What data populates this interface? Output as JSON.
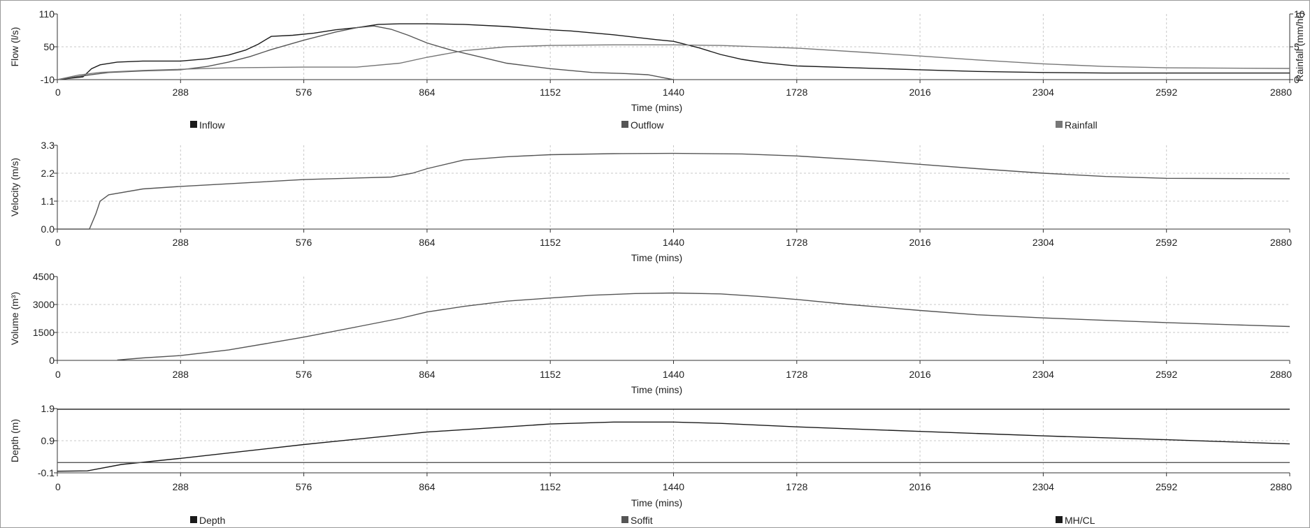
{
  "colors": {
    "series_dark": "#1a1a1a",
    "series_mid": "#555555",
    "series_light": "#777777",
    "grid": "#c8c8c8",
    "axis": "#333333"
  },
  "chart_data": [
    {
      "type": "line",
      "id": "flow",
      "xlabel": "Time (mins)",
      "ylabel": "Flow (l/s)",
      "y2label": "Rainfall (mm/hr)",
      "xlim": [
        0,
        2880
      ],
      "xticks": [
        0,
        288,
        576,
        864,
        1152,
        1440,
        1728,
        2016,
        2304,
        2592,
        2880
      ],
      "ylim": [
        -10,
        110
      ],
      "yticks": [
        -10,
        50,
        110
      ],
      "y2lim": [
        0,
        10
      ],
      "y2ticks": [
        0,
        5,
        10
      ],
      "grid": true,
      "legend": [
        "Inflow",
        "Outflow",
        "Rainfall"
      ],
      "series": [
        {
          "name": "Inflow",
          "axis": "left",
          "x": [
            0,
            60,
            80,
            100,
            140,
            200,
            288,
            350,
            400,
            440,
            470,
            500,
            550,
            600,
            650,
            700,
            750,
            800,
            864,
            950,
            1050,
            1152,
            1200,
            1300,
            1400,
            1440,
            1500,
            1550,
            1600,
            1650,
            1700,
            1728,
            1850,
            2016,
            2150,
            2304,
            2450,
            2592,
            2880
          ],
          "y": [
            -10,
            -5,
            10,
            17,
            22,
            24,
            24,
            28,
            35,
            44,
            55,
            69,
            71,
            75,
            81,
            85,
            91,
            92,
            92,
            91,
            87,
            81,
            79,
            72,
            63,
            60,
            48,
            36,
            27,
            21,
            17,
            15,
            12,
            8,
            5,
            3,
            2,
            2,
            2
          ]
        },
        {
          "name": "Outflow",
          "axis": "left",
          "x": [
            0,
            60,
            120,
            200,
            288,
            350,
            400,
            450,
            500,
            576,
            650,
            700,
            740,
            780,
            820,
            864,
            920,
            980,
            1050,
            1152,
            1250,
            1330,
            1380,
            1420,
            1440
          ],
          "y": [
            -10,
            -3,
            3,
            6,
            8,
            14,
            22,
            32,
            45,
            62,
            77,
            85,
            88,
            82,
            71,
            57,
            44,
            33,
            20,
            10,
            3,
            1,
            -1,
            -7,
            -10
          ]
        },
        {
          "name": "Rainfall",
          "axis": "right",
          "x": [
            0,
            50,
            100,
            200,
            400,
            576,
            700,
            800,
            864,
            950,
            1050,
            1152,
            1300,
            1440,
            1550,
            1728,
            1900,
            2016,
            2150,
            2304,
            2450,
            2592,
            2880
          ],
          "y": [
            0,
            0.7,
            1.1,
            1.4,
            1.8,
            1.9,
            1.9,
            2.5,
            3.4,
            4.4,
            5.0,
            5.2,
            5.3,
            5.3,
            5.2,
            4.8,
            4.1,
            3.6,
            3.0,
            2.4,
            2.0,
            1.8,
            1.7
          ]
        }
      ]
    },
    {
      "type": "line",
      "id": "velocity",
      "xlabel": "Time (mins)",
      "ylabel": "Velocity (m/s)",
      "xlim": [
        0,
        2880
      ],
      "xticks": [
        0,
        288,
        576,
        864,
        1152,
        1440,
        1728,
        2016,
        2304,
        2592,
        2880
      ],
      "ylim": [
        0.0,
        3.3
      ],
      "yticks": [
        0.0,
        1.1,
        2.2,
        3.3
      ],
      "grid": true,
      "series": [
        {
          "name": "Velocity",
          "x": [
            0,
            75,
            90,
            100,
            120,
            200,
            288,
            576,
            780,
            830,
            864,
            950,
            1050,
            1152,
            1300,
            1440,
            1600,
            1728,
            1900,
            2016,
            2150,
            2304,
            2450,
            2592,
            2880
          ],
          "y": [
            0,
            0,
            0.6,
            1.1,
            1.35,
            1.58,
            1.68,
            1.95,
            2.05,
            2.2,
            2.38,
            2.72,
            2.85,
            2.93,
            2.97,
            2.98,
            2.96,
            2.88,
            2.7,
            2.55,
            2.38,
            2.2,
            2.07,
            2.0,
            1.98
          ]
        }
      ]
    },
    {
      "type": "line",
      "id": "volume",
      "xlabel": "Time (mins)",
      "ylabel": "Volume (m³)",
      "xlim": [
        0,
        2880
      ],
      "xticks": [
        0,
        288,
        576,
        864,
        1152,
        1440,
        1728,
        2016,
        2304,
        2592,
        2880
      ],
      "ylim": [
        0,
        4500
      ],
      "yticks": [
        0,
        1500,
        3000,
        4500
      ],
      "grid": true,
      "series": [
        {
          "name": "Volume",
          "x": [
            140,
            200,
            288,
            400,
            500,
            576,
            700,
            800,
            864,
            950,
            1050,
            1152,
            1250,
            1350,
            1440,
            1550,
            1650,
            1728,
            1850,
            2016,
            2150,
            2304,
            2450,
            2592,
            2750,
            2880
          ],
          "y": [
            20,
            130,
            260,
            560,
            950,
            1250,
            1800,
            2250,
            2600,
            2900,
            3180,
            3350,
            3500,
            3590,
            3620,
            3570,
            3420,
            3270,
            3000,
            2680,
            2450,
            2280,
            2150,
            2030,
            1910,
            1820
          ]
        }
      ]
    },
    {
      "type": "line",
      "id": "depth",
      "xlabel": "Time (mins)",
      "ylabel": "Depth (m)",
      "xlim": [
        0,
        2880
      ],
      "xticks": [
        0,
        288,
        576,
        864,
        1152,
        1440,
        1728,
        2016,
        2304,
        2592,
        2880
      ],
      "ylim": [
        -0.1,
        1.9
      ],
      "yticks": [
        -0.1,
        0.9,
        1.9
      ],
      "grid": true,
      "legend": [
        "Depth",
        "Soffit",
        "MH/CL"
      ],
      "series": [
        {
          "name": "Depth",
          "x": [
            0,
            70,
            150,
            288,
            576,
            864,
            1152,
            1300,
            1440,
            1550,
            1728,
            2016,
            2304,
            2592,
            2880
          ],
          "y": [
            -0.05,
            -0.04,
            0.16,
            0.35,
            0.78,
            1.17,
            1.42,
            1.48,
            1.48,
            1.44,
            1.33,
            1.19,
            1.05,
            0.93,
            0.8
          ]
        },
        {
          "name": "Soffit",
          "x": [
            0,
            2880
          ],
          "y": [
            0.22,
            0.22
          ]
        },
        {
          "name": "MH/CL",
          "x": [
            0,
            2880
          ],
          "y": [
            1.88,
            1.88
          ]
        }
      ]
    }
  ]
}
